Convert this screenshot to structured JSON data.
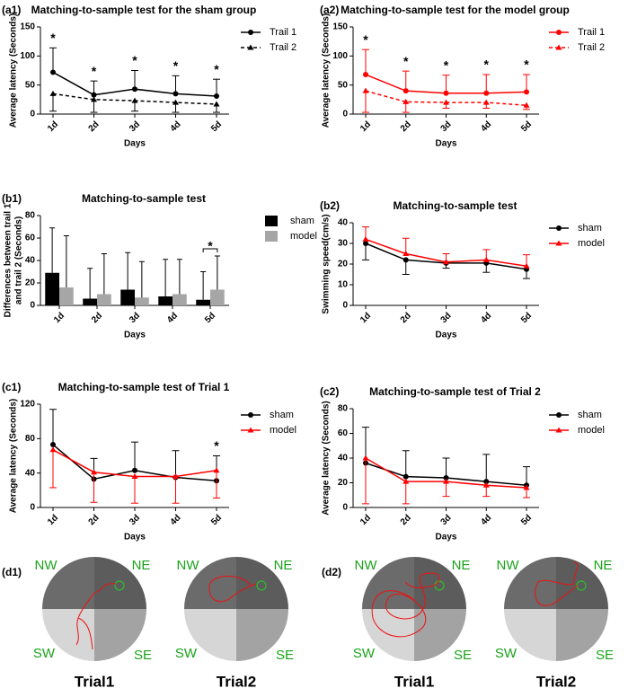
{
  "chart_data": [
    {
      "type": "line",
      "panel": "(a1)",
      "title": "Matching-to-sample test for the sham group",
      "x_label": "Days",
      "y_label": "Average latency (Seconds)",
      "categories": [
        "1d",
        "2d",
        "3d",
        "4d",
        "5d"
      ],
      "ylim": [
        0,
        150
      ],
      "yticks": [
        0,
        50,
        100,
        150
      ],
      "series": [
        {
          "name": "Trail 1",
          "color": "#000000",
          "marker": "circle",
          "dash": false,
          "error_bar": "up",
          "values": [
            72,
            33,
            43,
            35,
            31
          ],
          "errors": [
            42,
            24,
            32,
            31,
            29
          ]
        },
        {
          "name": "Trail 2",
          "color": "#000000",
          "marker": "triangle",
          "dash": true,
          "error_bar": "down",
          "values": [
            35,
            25,
            23,
            20,
            17
          ],
          "errors": [
            30,
            22,
            18,
            17,
            14
          ]
        }
      ],
      "annotations": [
        {
          "text": "*",
          "x": "1d"
        },
        {
          "text": "*",
          "x": "2d"
        },
        {
          "text": "*",
          "x": "3d"
        },
        {
          "text": "*",
          "x": "4d"
        },
        {
          "text": "*",
          "x": "5d"
        }
      ]
    },
    {
      "type": "line",
      "panel": "(a2)",
      "title": "Matching-to-sample test for the model group",
      "x_label": "Days",
      "y_label": "Average latency (Seconds)",
      "categories": [
        "1d",
        "2d",
        "3d",
        "4d",
        "5d"
      ],
      "ylim": [
        0,
        150
      ],
      "yticks": [
        0,
        50,
        100,
        150
      ],
      "series": [
        {
          "name": "Trail 1",
          "color": "#ff0000",
          "marker": "circle",
          "dash": false,
          "error_bar": "up",
          "values": [
            68,
            40,
            36,
            36,
            38
          ],
          "errors": [
            43,
            34,
            31,
            32,
            30
          ]
        },
        {
          "name": "Trail 2",
          "color": "#ff0000",
          "marker": "triangle",
          "dash": true,
          "error_bar": "down",
          "values": [
            40,
            21,
            20,
            20,
            15
          ],
          "errors": [
            37,
            18,
            10,
            10,
            7
          ]
        }
      ],
      "annotations": [
        {
          "text": "*",
          "x": "1d"
        },
        {
          "text": "*",
          "x": "2d"
        },
        {
          "text": "*",
          "x": "3d"
        },
        {
          "text": "*",
          "x": "4d"
        },
        {
          "text": "*",
          "x": "5d"
        }
      ]
    },
    {
      "type": "bar",
      "panel": "(b1)",
      "title": "Matching-to-sample test",
      "x_label": "Days",
      "y_label": [
        "Differences between trail 1",
        "and trail 2 (Seconds)"
      ],
      "categories": [
        "1d",
        "2d",
        "3d",
        "4d",
        "5d"
      ],
      "ylim": [
        0,
        80
      ],
      "yticks": [
        0,
        20,
        40,
        60,
        80
      ],
      "series": [
        {
          "name": "sham",
          "color": "#000000",
          "error_bar": "up",
          "values": [
            29,
            6,
            14,
            8,
            5
          ],
          "errors": [
            40,
            27,
            33,
            33,
            25
          ]
        },
        {
          "name": "model",
          "color": "#a6a6a6",
          "error_bar": "up",
          "values": [
            16,
            10,
            7,
            10,
            14
          ],
          "errors": [
            46,
            36,
            32,
            31,
            30
          ]
        }
      ],
      "annotations": [
        {
          "text": "*",
          "x": "5d",
          "bracket": true
        }
      ]
    },
    {
      "type": "line",
      "panel": "(b2)",
      "title": "Matching-to-sample test",
      "x_label": "Days",
      "y_label": "Swimming speed(cm/s)",
      "categories": [
        "1d",
        "2d",
        "3d",
        "4d",
        "5d"
      ],
      "ylim": [
        0,
        40
      ],
      "yticks": [
        0,
        10,
        20,
        30,
        40
      ],
      "series": [
        {
          "name": "sham",
          "color": "#000000",
          "marker": "circle",
          "dash": false,
          "error_bar": "down",
          "values": [
            30,
            22,
            20.5,
            20.5,
            17.5
          ],
          "errors": [
            8,
            7,
            2.5,
            4.5,
            4.5
          ]
        },
        {
          "name": "model",
          "color": "#ff0000",
          "marker": "triangle",
          "dash": false,
          "error_bar": "up",
          "values": [
            32,
            25,
            21,
            22,
            19
          ],
          "errors": [
            6,
            7.5,
            4,
            5,
            5.5
          ]
        }
      ]
    },
    {
      "type": "line",
      "panel": "(c1)",
      "title": "Matching-to-sample test of Trial 1",
      "x_label": "Days",
      "y_label": "Average latency (Seconds)",
      "categories": [
        "1d",
        "2d",
        "3d",
        "4d",
        "5d"
      ],
      "ylim": [
        0,
        120
      ],
      "yticks": [
        0,
        40,
        80,
        120
      ],
      "series": [
        {
          "name": "sham",
          "color": "#000000",
          "marker": "circle",
          "dash": false,
          "error_bar": "up",
          "values": [
            73,
            33,
            43,
            35,
            31
          ],
          "errors": [
            41,
            24,
            33,
            31,
            29
          ]
        },
        {
          "name": "model",
          "color": "#ff0000",
          "marker": "triangle",
          "dash": false,
          "error_bar": "down",
          "values": [
            67,
            41,
            36,
            36,
            43
          ],
          "errors": [
            44,
            35,
            31,
            31,
            32
          ]
        }
      ],
      "annotations": [
        {
          "text": "*",
          "x": "5d"
        }
      ]
    },
    {
      "type": "line",
      "panel": "(c2)",
      "title": "Matching-to-sample test of Trial 2",
      "x_label": "Days",
      "y_label": "Average latency (Seconds)",
      "categories": [
        "1d",
        "2d",
        "3d",
        "4d",
        "5d"
      ],
      "ylim": [
        0,
        80
      ],
      "yticks": [
        0,
        20,
        40,
        60,
        80
      ],
      "series": [
        {
          "name": "sham",
          "color": "#000000",
          "marker": "circle",
          "dash": false,
          "error_bar": "up",
          "values": [
            36,
            25,
            24,
            21,
            18
          ],
          "errors": [
            29,
            21,
            16,
            22,
            15
          ]
        },
        {
          "name": "model",
          "color": "#ff0000",
          "marker": "triangle",
          "dash": false,
          "error_bar": "down",
          "values": [
            40,
            21,
            21,
            18,
            16
          ],
          "errors": [
            37,
            18,
            12,
            9,
            8
          ]
        }
      ]
    }
  ],
  "track_panels": [
    {
      "label": "(d1)",
      "captions": [
        "Trial1",
        "Trial2"
      ]
    },
    {
      "label": "(d2)",
      "captions": [
        "Trial1",
        "Trial2"
      ]
    }
  ],
  "quadrants": [
    "NW",
    "NE",
    "SW",
    "SE"
  ]
}
